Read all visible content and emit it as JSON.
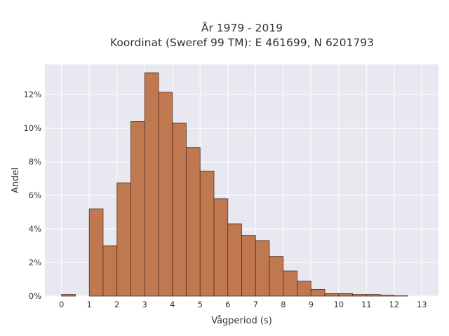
{
  "chart_data": {
    "type": "bar",
    "title_lines": [
      "År 1979 - 2019",
      "Koordinat (Sweref 99 TM): E 461699, N 6201793"
    ],
    "xlabel": "Vågperiod (s)",
    "ylabel": "Andel",
    "bin_width": 0.5,
    "bin_starts": [
      0,
      0.5,
      1,
      1.5,
      2,
      2.5,
      3,
      3.5,
      4,
      4.5,
      5,
      5.5,
      6,
      6.5,
      7,
      7.5,
      8,
      8.5,
      9,
      9.5,
      10,
      10.5,
      11,
      11.5,
      12
    ],
    "values": [
      0.1,
      0,
      5.2,
      3.0,
      6.75,
      10.4,
      13.3,
      12.15,
      10.3,
      8.85,
      7.45,
      5.8,
      4.3,
      3.6,
      3.3,
      2.35,
      1.5,
      0.9,
      0.4,
      0.15,
      0.15,
      0.1,
      0.1,
      0.05,
      0.02
    ],
    "value_unit": "%",
    "xlim": [
      -0.6,
      13.6
    ],
    "ylim": [
      0,
      13.8
    ],
    "x_ticks": [
      0,
      1,
      2,
      3,
      4,
      5,
      6,
      7,
      8,
      9,
      10,
      11,
      12,
      13
    ],
    "x_tick_labels": [
      "0",
      "1",
      "2",
      "3",
      "4",
      "5",
      "6",
      "7",
      "8",
      "9",
      "10",
      "11",
      "12",
      "13"
    ],
    "y_ticks": [
      0,
      2,
      4,
      6,
      8,
      10,
      12
    ],
    "y_tick_labels": [
      "0%",
      "2%",
      "4%",
      "6%",
      "8%",
      "10%",
      "12%"
    ],
    "grid": true,
    "legend": "none",
    "colors": {
      "bar_fill": "#c07850",
      "bar_edge": "#5a2e18",
      "plot_bg": "#e8e8f1",
      "grid": "#ffffff"
    }
  }
}
